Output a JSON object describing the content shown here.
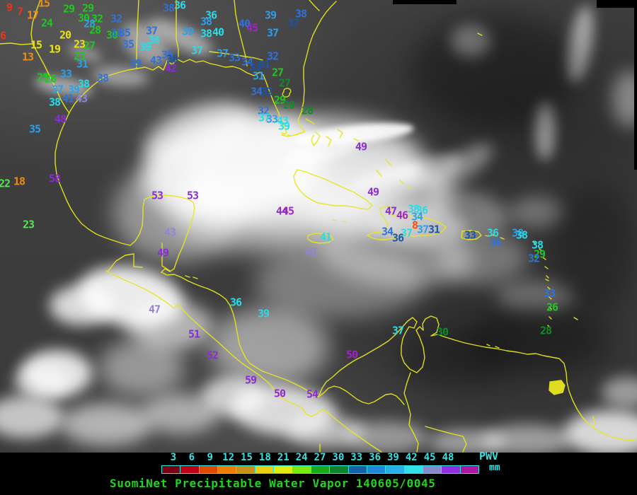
{
  "title": {
    "text": "SuomiNet Precipitable Water Vapor 140605/0045"
  },
  "legend": {
    "unit_label": "PWV",
    "unit_sub": "mm",
    "ticks": [
      "3",
      "6",
      "9",
      "12",
      "15",
      "18",
      "21",
      "24",
      "27",
      "30",
      "33",
      "36",
      "39",
      "42",
      "45",
      "48"
    ],
    "segment_colors": [
      "#780014",
      "#c00014",
      "#e04800",
      "#ef7c00",
      "#c89018",
      "#e8d010",
      "#e0ec10",
      "#78e810",
      "#18a818",
      "#10842a",
      "#1560a8",
      "#2088d8",
      "#28aee8",
      "#30e0e8",
      "#8888cc",
      "#9030e0",
      "#a818a0"
    ]
  },
  "map": {
    "palette": {
      "rd": "#f03418",
      "ro": "#f0500f",
      "or": "#f08c14",
      "yl": "#e8e412",
      "lg": "#50e850",
      "gr": "#1ec81e",
      "dg": "#0f8c28",
      "cy": "#28dce8",
      "sk": "#2f9fe8",
      "bl": "#2f72dd",
      "nv": "#1a55a8",
      "lv": "#8f86d8",
      "pu": "#8c2cd8",
      "vi": "#a224c8"
    },
    "stations": [
      [
        9,
        13,
        11,
        "rd"
      ],
      [
        7,
        28,
        17,
        "rd"
      ],
      [
        17,
        46,
        22,
        "or"
      ],
      [
        15,
        62,
        5,
        "or"
      ],
      [
        24,
        66,
        33,
        "gr"
      ],
      [
        29,
        97,
        13,
        "gr"
      ],
      [
        29,
        124,
        12,
        "gr"
      ],
      [
        6,
        4,
        51,
        "rd"
      ],
      [
        20,
        92,
        50,
        "yl"
      ],
      [
        15,
        51,
        64,
        "yl"
      ],
      [
        19,
        77,
        70,
        "yl"
      ],
      [
        13,
        39,
        81,
        "or"
      ],
      [
        23,
        112,
        63,
        "yl"
      ],
      [
        27,
        126,
        65,
        "gr"
      ],
      [
        23,
        112,
        80,
        "gr"
      ],
      [
        31,
        116,
        91,
        "sk"
      ],
      [
        30,
        118,
        26,
        "gr"
      ],
      [
        32,
        137,
        27,
        "gr"
      ],
      [
        32,
        164,
        27,
        "bl"
      ],
      [
        28,
        126,
        34,
        "sk"
      ],
      [
        28,
        134,
        43,
        "gr"
      ],
      [
        30,
        158,
        50,
        "gr"
      ],
      [
        33,
        164,
        47,
        "bl"
      ],
      [
        35,
        176,
        47,
        "bl"
      ],
      [
        37,
        214,
        44,
        "bl"
      ],
      [
        35,
        181,
        63,
        "bl"
      ],
      [
        39,
        205,
        67,
        "cy"
      ],
      [
        38,
        217,
        57,
        "cy"
      ],
      [
        39,
        191,
        90,
        "bl"
      ],
      [
        43,
        220,
        86,
        "bl"
      ],
      [
        25,
        60,
        110,
        "gr"
      ],
      [
        26,
        71,
        112,
        "gr"
      ],
      [
        33,
        93,
        105,
        "sk"
      ],
      [
        37,
        81,
        127,
        "sk"
      ],
      [
        39,
        104,
        127,
        "sk"
      ],
      [
        38,
        118,
        119,
        "cy"
      ],
      [
        38,
        145,
        111,
        "bl"
      ],
      [
        38,
        77,
        145,
        "cy"
      ],
      [
        41,
        96,
        140,
        "bl"
      ],
      [
        43,
        115,
        140,
        "lv"
      ],
      [
        48,
        85,
        169,
        "pu"
      ],
      [
        35,
        49,
        183,
        "sk"
      ],
      [
        58,
        77,
        253,
        "pu"
      ],
      [
        18,
        27,
        257,
        "or"
      ],
      [
        22,
        6,
        260,
        "lg"
      ],
      [
        23,
        40,
        318,
        "lg"
      ],
      [
        53,
        222,
        277,
        "pu"
      ],
      [
        53,
        272,
        277,
        "pu"
      ],
      [
        43,
        240,
        329,
        "lv"
      ],
      [
        49,
        230,
        358,
        "pu"
      ],
      [
        38,
        238,
        12,
        "bl"
      ],
      [
        36,
        254,
        8,
        "cy"
      ],
      [
        36,
        298,
        22,
        "cy"
      ],
      [
        38,
        291,
        31,
        "sk"
      ],
      [
        39,
        265,
        45,
        "sk"
      ],
      [
        38,
        291,
        48,
        "cy"
      ],
      [
        40,
        308,
        46,
        "cy"
      ],
      [
        40,
        345,
        34,
        "bl"
      ],
      [
        45,
        356,
        40,
        "vi"
      ],
      [
        39,
        382,
        22,
        "sk"
      ],
      [
        37,
        385,
        47,
        "sk"
      ],
      [
        38,
        425,
        20,
        "bl"
      ],
      [
        37,
        414,
        33,
        "nv"
      ],
      [
        37,
        278,
        72,
        "cy"
      ],
      [
        35,
        236,
        78,
        "bl"
      ],
      [
        36,
        243,
        84,
        "nv"
      ],
      [
        42,
        241,
        97,
        "pu"
      ],
      [
        37,
        314,
        76,
        "sk"
      ],
      [
        33,
        331,
        82,
        "bl"
      ],
      [
        34,
        349,
        88,
        "bl"
      ],
      [
        33,
        360,
        95,
        "nv"
      ],
      [
        32,
        385,
        80,
        "bl"
      ],
      [
        31,
        373,
        92,
        "nv"
      ],
      [
        31,
        365,
        108,
        "sk"
      ],
      [
        27,
        392,
        103,
        "gr"
      ],
      [
        27,
        402,
        118,
        "dg"
      ],
      [
        34,
        362,
        130,
        "bl"
      ],
      [
        32,
        377,
        130,
        "nv"
      ],
      [
        29,
        395,
        142,
        "gr"
      ],
      [
        29,
        408,
        149,
        "dg"
      ],
      [
        28,
        434,
        157,
        "dg"
      ],
      [
        32,
        372,
        157,
        "bl"
      ],
      [
        37,
        373,
        167,
        "cy"
      ],
      [
        33,
        384,
        169,
        "sk"
      ],
      [
        43,
        399,
        171,
        "cy"
      ],
      [
        39,
        401,
        179,
        "cy"
      ],
      [
        49,
        510,
        208,
        "pu"
      ],
      [
        49,
        527,
        272,
        "pu"
      ],
      [
        44,
        398,
        299,
        "pu"
      ],
      [
        45,
        407,
        299,
        "vi"
      ],
      [
        41,
        460,
        336,
        "cy"
      ],
      [
        42,
        439,
        357,
        "lv"
      ],
      [
        47,
        552,
        299,
        "pu"
      ],
      [
        46,
        568,
        305,
        "vi"
      ],
      [
        38,
        584,
        296,
        "cy"
      ],
      [
        36,
        596,
        298,
        "cy"
      ],
      [
        34,
        589,
        307,
        "sk"
      ],
      [
        8,
        586,
        319,
        "ro"
      ],
      [
        37,
        597,
        325,
        "sk"
      ],
      [
        31,
        613,
        325,
        "nv"
      ],
      [
        34,
        547,
        328,
        "bl"
      ],
      [
        37,
        574,
        330,
        "cy"
      ],
      [
        36,
        562,
        337,
        "nv"
      ],
      [
        33,
        664,
        333,
        "nv"
      ],
      [
        36,
        696,
        330,
        "cy"
      ],
      [
        36,
        700,
        343,
        "bl"
      ],
      [
        38,
        731,
        330,
        "sk"
      ],
      [
        38,
        737,
        333,
        "cy"
      ],
      [
        38,
        759,
        347,
        "cy"
      ],
      [
        29,
        762,
        360,
        "gr"
      ],
      [
        32,
        754,
        366,
        "bl"
      ],
      [
        33,
        776,
        415,
        "bl"
      ],
      [
        26,
        780,
        435,
        "gr"
      ],
      [
        28,
        771,
        468,
        "dg"
      ],
      [
        47,
        218,
        438,
        "lv"
      ],
      [
        36,
        333,
        428,
        "cy"
      ],
      [
        39,
        372,
        444,
        "cy"
      ],
      [
        51,
        274,
        473,
        "pu"
      ],
      [
        52,
        300,
        503,
        "pu"
      ],
      [
        59,
        354,
        538,
        "pu"
      ],
      [
        50,
        395,
        557,
        "pu"
      ],
      [
        54,
        441,
        558,
        "pu"
      ],
      [
        50,
        497,
        502,
        "vi"
      ],
      [
        37,
        562,
        468,
        "cy"
      ],
      [
        30,
        625,
        470,
        "dg"
      ]
    ]
  }
}
